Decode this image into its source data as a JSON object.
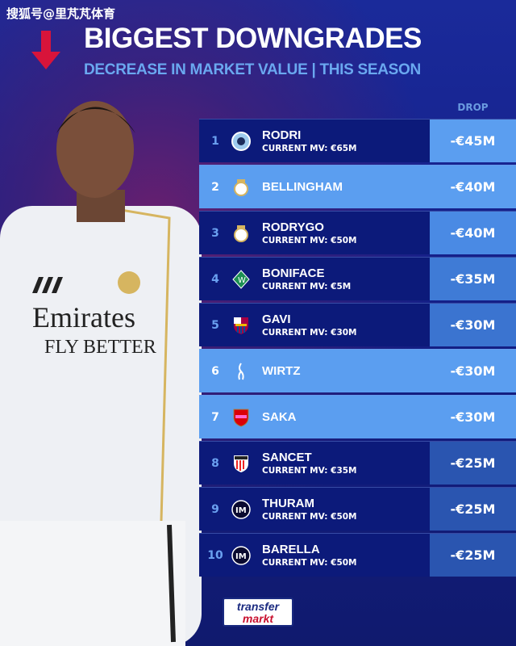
{
  "watermark": "搜狐号@里芃芃体育",
  "title": "BIGGEST DOWNGRADES",
  "subtitle": "DECREASE IN MARKET VALUE | THIS SEASON",
  "column_header": "DROP",
  "colors": {
    "accent_arrow": "#d8143a",
    "row_dark": "#0c1a7a",
    "row_light": "#5b9ef0",
    "subtitle": "#6aa8f0"
  },
  "shirt_text": {
    "sponsor": "Emirates",
    "tagline": "FLY BETTER"
  },
  "rows": [
    {
      "rank": "1",
      "name": "RODRI",
      "mv": "CURRENT MV: €65M",
      "drop": "-€45M",
      "crest": "man-city-crest-icon",
      "drop_color": "#5b9ef0",
      "light": false
    },
    {
      "rank": "2",
      "name": "BELLINGHAM",
      "mv": "",
      "drop": "-€40M",
      "crest": "real-madrid-crest-icon",
      "drop_color": "#5b9ef0",
      "light": true
    },
    {
      "rank": "3",
      "name": "RODRYGO",
      "mv": "CURRENT MV: €50M",
      "drop": "-€40M",
      "crest": "real-madrid-crest-icon",
      "drop_color": "#4a8ae4",
      "light": false
    },
    {
      "rank": "4",
      "name": "BONIFACE",
      "mv": "CURRENT MV: €5M",
      "drop": "-€35M",
      "crest": "werder-bremen-crest-icon",
      "drop_color": "#3f7bd6",
      "light": false
    },
    {
      "rank": "5",
      "name": "GAVI",
      "mv": "CURRENT MV: €30M",
      "drop": "-€30M",
      "crest": "barcelona-crest-icon",
      "drop_color": "#3b74d0",
      "light": false
    },
    {
      "rank": "6",
      "name": "WIRTZ",
      "mv": "",
      "drop": "-€30M",
      "crest": "liverpool-crest-icon",
      "drop_color": "#5b9ef0",
      "light": true
    },
    {
      "rank": "7",
      "name": "SAKA",
      "mv": "",
      "drop": "-€30M",
      "crest": "arsenal-crest-icon",
      "drop_color": "#5b9ef0",
      "light": true
    },
    {
      "rank": "8",
      "name": "SANCET",
      "mv": "CURRENT MV: €35M",
      "drop": "-€25M",
      "crest": "athletic-bilbao-crest-icon",
      "drop_color": "#2a55b0",
      "light": false
    },
    {
      "rank": "9",
      "name": "THURAM",
      "mv": "CURRENT MV: €50M",
      "drop": "-€25M",
      "crest": "inter-milan-crest-icon",
      "drop_color": "#2a55b0",
      "light": false
    },
    {
      "rank": "10",
      "name": "BARELLA",
      "mv": "CURRENT MV: €50M",
      "drop": "-€25M",
      "crest": "inter-milan-crest-icon",
      "drop_color": "#2a55b0",
      "light": false
    }
  ],
  "logo": {
    "line1": "transfer",
    "line2": "markt"
  }
}
